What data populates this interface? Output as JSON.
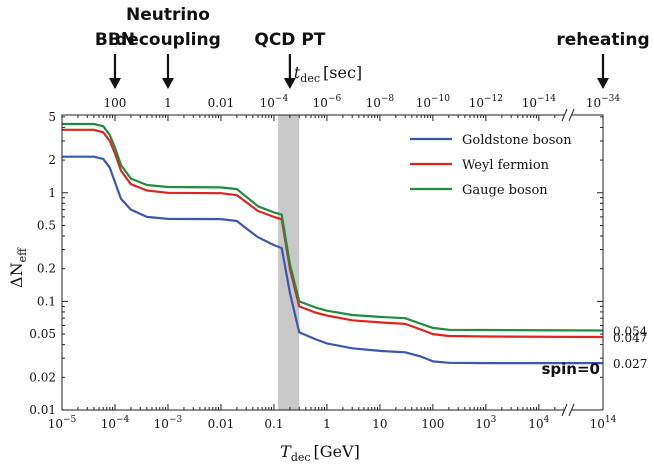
{
  "chart_data": {
    "type": "line",
    "xlabel": "T_dec [GeV]",
    "xlabel_main": "T",
    "xlabel_sub": "dec",
    "xlabel_unit": "[GeV]",
    "ylabel": "ΔN_eff",
    "ylabel_main": "ΔN",
    "ylabel_sub": "eff",
    "toplabel": "t_dec [sec]",
    "toplabel_main": "t",
    "toplabel_sub": "dec",
    "toplabel_unit": "[sec]",
    "xscale": "log",
    "yscale": "log",
    "xlim": [
      1e-05,
      100000000000000
    ],
    "ylim": [
      0.01,
      5
    ],
    "x_axis_break": "between 10^4 and 10^14",
    "legend_position": "top-right",
    "x_ticks": [
      {
        "value": 1e-05,
        "base": "10",
        "exp": "−5"
      },
      {
        "value": 0.0001,
        "base": "10",
        "exp": "−4"
      },
      {
        "value": 0.001,
        "base": "10",
        "exp": "−3"
      },
      {
        "value": 0.01,
        "text": "0.01"
      },
      {
        "value": 0.1,
        "text": "0.1"
      },
      {
        "value": 1,
        "text": "1"
      },
      {
        "value": 10,
        "text": "10"
      },
      {
        "value": 100,
        "text": "100"
      },
      {
        "value": 1000,
        "base": "10",
        "exp": "3"
      },
      {
        "value": 10000,
        "base": "10",
        "exp": "4"
      },
      {
        "value": 100000000000000,
        "base": "10",
        "exp": "14"
      }
    ],
    "top_ticks": [
      {
        "at_T": 0.0001,
        "text": "100"
      },
      {
        "at_T": 0.001,
        "text": "1"
      },
      {
        "at_T": 0.01,
        "text": "0.01"
      },
      {
        "at_T": 0.1,
        "base": "10",
        "exp": "−4"
      },
      {
        "at_T": 1,
        "base": "10",
        "exp": "−6"
      },
      {
        "at_T": 10,
        "base": "10",
        "exp": "−8"
      },
      {
        "at_T": 100,
        "base": "10",
        "exp": "−10"
      },
      {
        "at_T": 1000,
        "base": "10",
        "exp": "−12"
      },
      {
        "at_T": 10000,
        "base": "10",
        "exp": "−14"
      },
      {
        "at_T": 100000000000000,
        "base": "10",
        "exp": "−34"
      }
    ],
    "y_ticks": [
      {
        "value": 0.01,
        "text": "0.01"
      },
      {
        "value": 0.02,
        "text": "0.02"
      },
      {
        "value": 0.05,
        "text": "0.05"
      },
      {
        "value": 0.1,
        "text": "0.1"
      },
      {
        "value": 0.2,
        "text": "0.2"
      },
      {
        "value": 0.5,
        "text": "0.5"
      },
      {
        "value": 1,
        "text": "1"
      },
      {
        "value": 2,
        "text": "2"
      },
      {
        "value": 5,
        "text": "5"
      }
    ],
    "shaded_band": {
      "x": [
        0.12,
        0.3
      ],
      "color": "#c8c8c8"
    },
    "series": [
      {
        "name": "Goldstone boson",
        "color": "#3a57b0",
        "end_label": "0.027",
        "points": [
          [
            1e-05,
            2.15
          ],
          [
            4e-05,
            2.15
          ],
          [
            6e-05,
            2.05
          ],
          [
            8e-05,
            1.7
          ],
          [
            0.0001,
            1.25
          ],
          [
            0.00013,
            0.88
          ],
          [
            0.0002,
            0.7
          ],
          [
            0.0004,
            0.6
          ],
          [
            0.001,
            0.575
          ],
          [
            0.01,
            0.572
          ],
          [
            0.02,
            0.55
          ],
          [
            0.03,
            0.47
          ],
          [
            0.05,
            0.39
          ],
          [
            0.1,
            0.33
          ],
          [
            0.14,
            0.31
          ],
          [
            0.2,
            0.12
          ],
          [
            0.3,
            0.052
          ],
          [
            0.6,
            0.045
          ],
          [
            1,
            0.041
          ],
          [
            3,
            0.037
          ],
          [
            10,
            0.035
          ],
          [
            30,
            0.034
          ],
          [
            60,
            0.031
          ],
          [
            100,
            0.028
          ],
          [
            200,
            0.0272
          ],
          [
            1000,
            0.027
          ],
          [
            100000000000000,
            0.027
          ]
        ]
      },
      {
        "name": "Weyl fermion",
        "color": "#e0241d",
        "end_label": "0.047",
        "points": [
          [
            1e-05,
            3.8
          ],
          [
            4e-05,
            3.8
          ],
          [
            6e-05,
            3.6
          ],
          [
            8e-05,
            3.0
          ],
          [
            0.0001,
            2.3
          ],
          [
            0.00013,
            1.6
          ],
          [
            0.0002,
            1.2
          ],
          [
            0.0004,
            1.05
          ],
          [
            0.001,
            1.0
          ],
          [
            0.01,
            0.99
          ],
          [
            0.02,
            0.95
          ],
          [
            0.03,
            0.82
          ],
          [
            0.05,
            0.68
          ],
          [
            0.1,
            0.6
          ],
          [
            0.14,
            0.57
          ],
          [
            0.2,
            0.2
          ],
          [
            0.3,
            0.09
          ],
          [
            0.6,
            0.079
          ],
          [
            1,
            0.074
          ],
          [
            3,
            0.067
          ],
          [
            10,
            0.064
          ],
          [
            30,
            0.062
          ],
          [
            60,
            0.055
          ],
          [
            100,
            0.05
          ],
          [
            200,
            0.048
          ],
          [
            1000,
            0.0475
          ],
          [
            100000000000000,
            0.047
          ]
        ]
      },
      {
        "name": "Gauge boson",
        "color": "#1f8c3f",
        "end_label": "0.054",
        "points": [
          [
            1e-05,
            4.3
          ],
          [
            4e-05,
            4.3
          ],
          [
            6e-05,
            4.1
          ],
          [
            8e-05,
            3.4
          ],
          [
            0.0001,
            2.6
          ],
          [
            0.00013,
            1.8
          ],
          [
            0.0002,
            1.35
          ],
          [
            0.0004,
            1.18
          ],
          [
            0.001,
            1.13
          ],
          [
            0.01,
            1.12
          ],
          [
            0.02,
            1.08
          ],
          [
            0.03,
            0.92
          ],
          [
            0.05,
            0.75
          ],
          [
            0.1,
            0.66
          ],
          [
            0.14,
            0.63
          ],
          [
            0.2,
            0.22
          ],
          [
            0.3,
            0.1
          ],
          [
            0.6,
            0.088
          ],
          [
            1,
            0.082
          ],
          [
            3,
            0.075
          ],
          [
            10,
            0.072
          ],
          [
            30,
            0.07
          ],
          [
            60,
            0.062
          ],
          [
            100,
            0.057
          ],
          [
            200,
            0.0548
          ],
          [
            1000,
            0.0545
          ],
          [
            100000000000000,
            0.054
          ]
        ]
      }
    ],
    "annotations": [
      {
        "lines": [
          "BBN"
        ],
        "at_T": 0.0001
      },
      {
        "lines": [
          "Neutrino",
          "decoupling"
        ],
        "at_T": 0.001
      },
      {
        "lines": [
          "QCD PT"
        ],
        "at_T": 0.2
      },
      {
        "lines": [
          "reheating"
        ],
        "at_T": 100000000000000
      }
    ],
    "inset_label": "spin=0"
  }
}
